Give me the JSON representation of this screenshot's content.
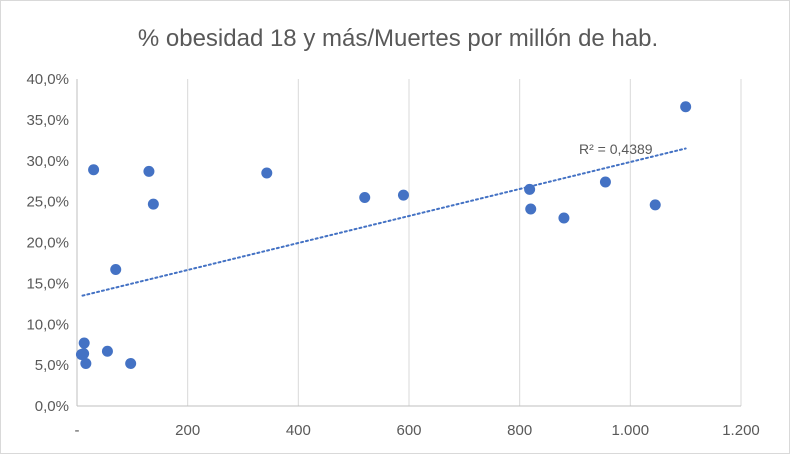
{
  "chart_data": {
    "type": "scatter",
    "title": "% obesidad 18 y más/Muertes por millón de hab.",
    "xlabel": "",
    "ylabel": "",
    "xlim": [
      0,
      1200
    ],
    "ylim": [
      0,
      0.4
    ],
    "x_ticks": [
      0,
      200,
      400,
      600,
      800,
      1000,
      1200
    ],
    "x_tick_labels": [
      "-",
      "200",
      "400",
      "600",
      "800",
      "1.000",
      "1.200"
    ],
    "y_ticks": [
      0,
      0.05,
      0.1,
      0.15,
      0.2,
      0.25,
      0.3,
      0.35,
      0.4
    ],
    "y_tick_labels": [
      "0,0%",
      "5,0%",
      "10,0%",
      "15,0%",
      "20,0%",
      "25,0%",
      "30,0%",
      "35,0%",
      "40,0%"
    ],
    "grid": {
      "vertical": true,
      "horizontal": false
    },
    "point_color": "#4472C4",
    "trendline": {
      "type": "linear",
      "style": "dotted",
      "color": "#4472C4",
      "x_range": [
        10,
        1100
      ],
      "y_at_start": 0.135,
      "y_at_end": 0.315,
      "r2_label": "R² = 0,4389"
    },
    "points": [
      {
        "x": 8,
        "y": 0.063
      },
      {
        "x": 12,
        "y": 0.064
      },
      {
        "x": 13,
        "y": 0.077
      },
      {
        "x": 16,
        "y": 0.052
      },
      {
        "x": 30,
        "y": 0.289
      },
      {
        "x": 55,
        "y": 0.067
      },
      {
        "x": 70,
        "y": 0.167
      },
      {
        "x": 97,
        "y": 0.052
      },
      {
        "x": 130,
        "y": 0.287
      },
      {
        "x": 138,
        "y": 0.247
      },
      {
        "x": 343,
        "y": 0.285
      },
      {
        "x": 520,
        "y": 0.255
      },
      {
        "x": 590,
        "y": 0.258
      },
      {
        "x": 818,
        "y": 0.265
      },
      {
        "x": 820,
        "y": 0.241
      },
      {
        "x": 880,
        "y": 0.23
      },
      {
        "x": 955,
        "y": 0.274
      },
      {
        "x": 1045,
        "y": 0.246
      },
      {
        "x": 1100,
        "y": 0.366
      }
    ]
  }
}
